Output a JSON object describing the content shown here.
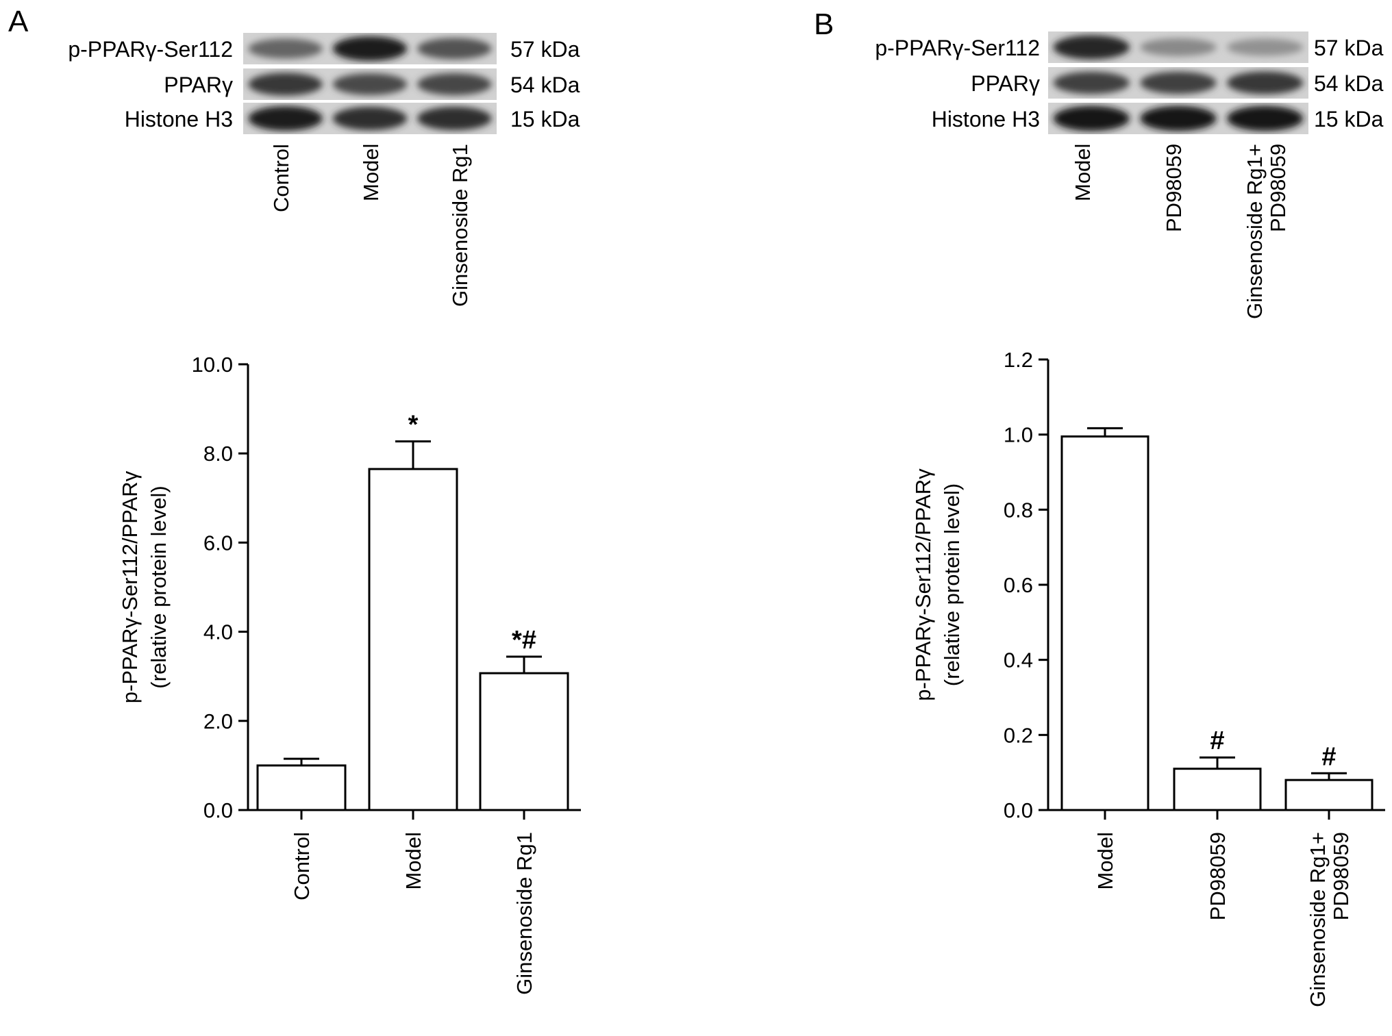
{
  "panels": [
    {
      "letter": "A",
      "blot": {
        "rows": [
          {
            "label": "p-PPARγ-Ser112",
            "size": "57 kDa",
            "intensities": [
              0.55,
              0.95,
              0.65
            ]
          },
          {
            "label": "PPARγ",
            "size": "54 kDa",
            "intensities": [
              0.8,
              0.7,
              0.72
            ]
          },
          {
            "label": "Histone H3",
            "size": "15 kDa",
            "intensities": [
              0.95,
              0.85,
              0.85
            ]
          }
        ],
        "lanes": [
          "Control",
          "Model",
          "Ginsenoside Rg1"
        ]
      }
    },
    {
      "letter": "B",
      "blot": {
        "rows": [
          {
            "label": "p-PPARγ-Ser112",
            "size": "57 kDa",
            "intensities": [
              0.9,
              0.35,
              0.3
            ]
          },
          {
            "label": "PPARγ",
            "size": "54 kDa",
            "intensities": [
              0.75,
              0.75,
              0.8
            ]
          },
          {
            "label": "Histone H3",
            "size": "15 kDa",
            "intensities": [
              1.0,
              1.0,
              1.0
            ]
          }
        ],
        "lanes": [
          "Model",
          "PD98059",
          "Ginsenoside Rg1+ PD98059"
        ],
        "lane_lines": [
          [
            "Model"
          ],
          [
            "PD98059"
          ],
          [
            "Ginsenoside Rg1+",
            "PD98059"
          ]
        ]
      }
    }
  ],
  "chart_data": [
    {
      "type": "bar",
      "categories": [
        "Control",
        "Model",
        "Ginsenoside Rg1"
      ],
      "category_lines": [
        [
          "Control"
        ],
        [
          "Model"
        ],
        [
          "Ginsenoside Rg1"
        ]
      ],
      "values": [
        1.0,
        7.65,
        3.07
      ],
      "errors": [
        0.15,
        0.62,
        0.37
      ],
      "annotations": [
        "",
        "*",
        "*#"
      ],
      "ylabel_lines": [
        "p-PPARγ-Ser112/PPARγ",
        "(relative protein level)"
      ],
      "ylim": [
        0,
        10
      ],
      "yticks": [
        0,
        2,
        4,
        6,
        8,
        10
      ],
      "ytick_labels": [
        "0.0",
        "2.0",
        "4.0",
        "6.0",
        "8.0",
        "10.0"
      ],
      "bar_fill": "#ffffff",
      "bar_stroke": "#000000",
      "grid": false
    },
    {
      "type": "bar",
      "categories": [
        "Model",
        "PD98059",
        "Ginsenoside Rg1+ PD98059"
      ],
      "category_lines": [
        [
          "Model"
        ],
        [
          "PD98059"
        ],
        [
          "Ginsenoside Rg1+",
          "PD98059"
        ]
      ],
      "values": [
        0.995,
        0.11,
        0.08
      ],
      "errors": [
        0.022,
        0.03,
        0.018
      ],
      "annotations": [
        "",
        "#",
        "#"
      ],
      "ylabel_lines": [
        "p-PPARγ-Ser112/PPARγ",
        "(relative protein level)"
      ],
      "ylim": [
        0,
        1.2
      ],
      "yticks": [
        0,
        0.2,
        0.4,
        0.6,
        0.8,
        1.0,
        1.2
      ],
      "ytick_labels": [
        "0.0",
        "0.2",
        "0.4",
        "0.6",
        "0.8",
        "1.0",
        "1.2"
      ],
      "bar_fill": "#ffffff",
      "bar_stroke": "#000000",
      "grid": false
    }
  ]
}
